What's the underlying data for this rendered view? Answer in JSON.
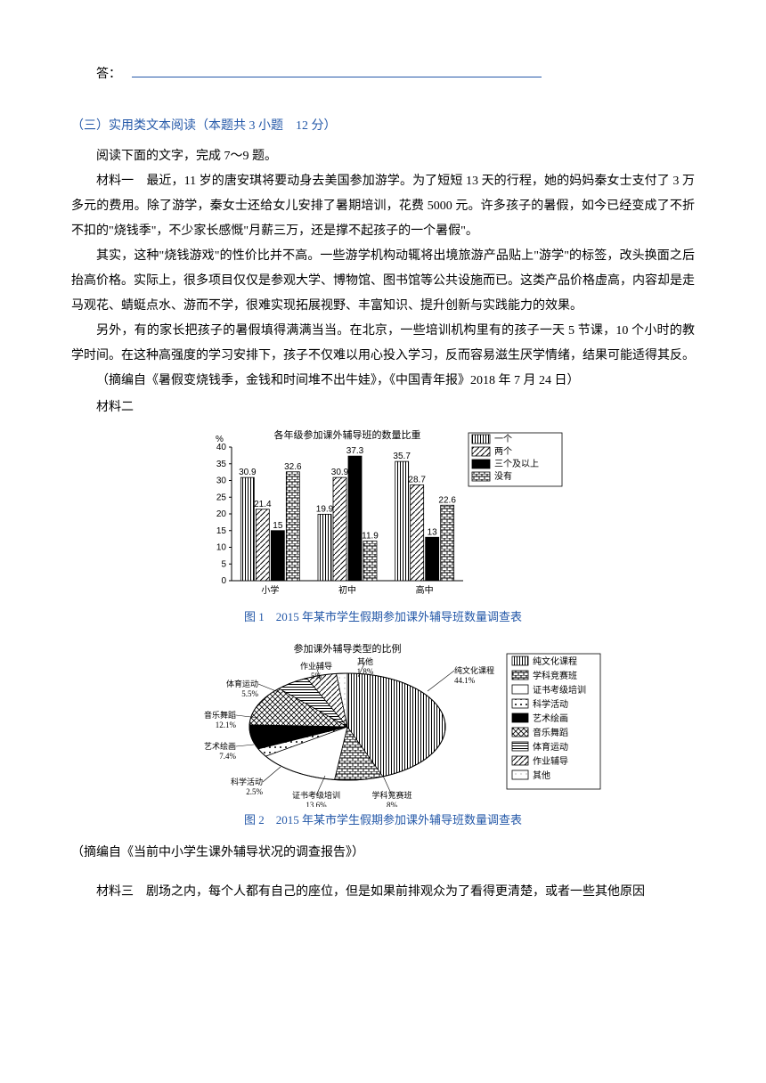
{
  "answer": {
    "label": "答："
  },
  "section": {
    "title": "（三）实用类文本阅读（本题共 3 小题　12 分）",
    "instruction": "阅读下面的文字，完成 7～9 题。",
    "p1": "材料一　最近，11 岁的唐安琪将要动身去美国参加游学。为了短短 13 天的行程，她的妈妈秦女士支付了 3 万多元的费用。除了游学，秦女士还给女儿安排了暑期培训，花费 5000 元。许多孩子的暑假，如今已经变成了不折不扣的\"烧钱季\"，不少家长感慨\"月薪三万，还是撑不起孩子的一个暑假\"。",
    "p2": "其实，这种\"烧钱游戏\"的性价比并不高。一些游学机构动辄将出境旅游产品贴上\"游学\"的标签，改头换面之后抬高价格。实际上，很多项目仅仅是参观大学、博物馆、图书馆等公共设施而已。这类产品价格虚高，内容却是走马观花、蜻蜓点水、游而不学，很难实现拓展视野、丰富知识、提升创新与实践能力的效果。",
    "p3": "另外，有的家长把孩子的暑假填得满满当当。在北京，一些培训机构里有的孩子一天 5 节课，10 个小时的教学时间。在这种高强度的学习安排下，孩子不仅难以用心投入学习，反而容易滋生厌学情绪，结果可能适得其反。",
    "source1": "（摘编自《暑假变烧钱季，金钱和时间堆不出牛娃》，《中国青年报》2018 年 7 月 24 日）",
    "mat2_label": "材料二",
    "chart1": {
      "type": "bar",
      "title": "各年级参加课外辅导班的数量比重",
      "categories": [
        "小学",
        "初中",
        "高中"
      ],
      "series": [
        "一个",
        "两个",
        "三个及以上",
        "没有"
      ],
      "patterns": [
        "vstripe",
        "diag",
        "solid",
        "brick"
      ],
      "values": [
        [
          30.9,
          21.4,
          15,
          32.6
        ],
        [
          19.9,
          30.9,
          37.3,
          11.9
        ],
        [
          35.7,
          28.7,
          13,
          22.6
        ]
      ],
      "ylim": [
        0,
        40
      ],
      "ytick_step": 5,
      "ylabel": "%",
      "bar_color": "#ffffff",
      "border_color": "#000000",
      "background": "#ffffff"
    },
    "caption1": "图 1　2015 年某市学生假期参加课外辅导班数量调查表",
    "chart2": {
      "type": "pie",
      "title": "参加课外辅导类型的比例",
      "slices": [
        {
          "label": "纯文化课程",
          "pct": 44.1,
          "pattern": "vstripe"
        },
        {
          "label": "学科竞赛班",
          "pct": 8.0,
          "pattern": "brick"
        },
        {
          "label": "证书考级培训",
          "pct": 13.6,
          "pattern": "white"
        },
        {
          "label": "科学活动",
          "pct": 2.5,
          "pattern": "dots"
        },
        {
          "label": "艺术绘画",
          "pct": 7.4,
          "pattern": "black"
        },
        {
          "label": "音乐舞蹈",
          "pct": 12.1,
          "pattern": "crosshatch"
        },
        {
          "label": "体育运动",
          "pct": 5.5,
          "pattern": "hstripe"
        },
        {
          "label": "作业辅导",
          "pct": 5.0,
          "pattern": "diag"
        },
        {
          "label": "其他",
          "pct": 1.8,
          "pattern": "lightdots"
        }
      ],
      "legend": [
        "纯文化课程",
        "学科竞赛班",
        "证书考级培训",
        "科学活动",
        "艺术绘画",
        "音乐舞蹈",
        "体育运动",
        "作业辅导",
        "其他"
      ],
      "background": "#ffffff",
      "border_color": "#000000"
    },
    "caption2": "图 2　2015 年某市学生假期参加课外辅导班数量调查表",
    "source2": "（摘编自《当前中小学生课外辅导状况的调查报告》）",
    "p4": "材料三　剧场之内，每个人都有自己的座位，但是如果前排观众为了看得更清楚，或者一些其他原因"
  }
}
